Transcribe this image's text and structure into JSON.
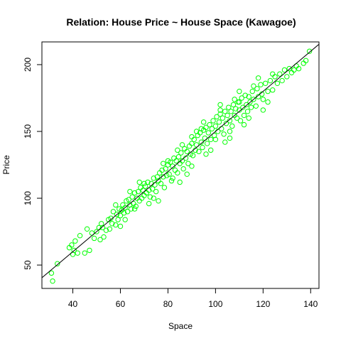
{
  "chart_data": {
    "type": "scatter",
    "title": "Relation: House Price ~ House Space (Kawagoe)",
    "xlabel": "Space",
    "ylabel": "Price",
    "xlim": [
      27,
      143.5
    ],
    "ylim": [
      32.5,
      217
    ],
    "xticks": [
      40,
      60,
      80,
      100,
      120,
      140
    ],
    "yticks": [
      50,
      100,
      150,
      200
    ],
    "grid": false,
    "point_color": "#00FF00",
    "line_color": "#000000",
    "fit_line": {
      "type": "regression",
      "slope": 1.5,
      "intercept": 0,
      "x_range": [
        27,
        143.5
      ]
    },
    "series": [
      {
        "points": [
          [
            31,
            44
          ],
          [
            31.5,
            38
          ],
          [
            33.5,
            51
          ],
          [
            38.5,
            63
          ],
          [
            39.5,
            65
          ],
          [
            40.5,
            61
          ],
          [
            40,
            58
          ],
          [
            41,
            68
          ],
          [
            42,
            59
          ],
          [
            43,
            72
          ],
          [
            45,
            59
          ],
          [
            46,
            77
          ],
          [
            47,
            61
          ],
          [
            48,
            74
          ],
          [
            49,
            70
          ],
          [
            50,
            75
          ],
          [
            51,
            78
          ],
          [
            51.5,
            69
          ],
          [
            52,
            81
          ],
          [
            52.5,
            78
          ],
          [
            53,
            71
          ],
          [
            54,
            76
          ],
          [
            55,
            84
          ],
          [
            55.5,
            77
          ],
          [
            56,
            85
          ],
          [
            56.5,
            81
          ],
          [
            57,
            90
          ],
          [
            58,
            80
          ],
          [
            58.5,
            88
          ],
          [
            59,
            84
          ],
          [
            59.5,
            92
          ],
          [
            60,
            87
          ],
          [
            60.5,
            91
          ],
          [
            61,
            95
          ],
          [
            61.5,
            89
          ],
          [
            62,
            93
          ],
          [
            62.5,
            98
          ],
          [
            63,
            90
          ],
          [
            63.5,
            99
          ],
          [
            64,
            95
          ],
          [
            64.5,
            92
          ],
          [
            65,
            101
          ],
          [
            65.5,
            96
          ],
          [
            66,
            104
          ],
          [
            66.5,
            94
          ],
          [
            67,
            100
          ],
          [
            67.5,
            105
          ],
          [
            68,
            98
          ],
          [
            68.5,
            108
          ],
          [
            69,
            100
          ],
          [
            69.5,
            106
          ],
          [
            70,
            102
          ],
          [
            70.5,
            109
          ],
          [
            71,
            104
          ],
          [
            71.5,
            112
          ],
          [
            72,
            106
          ],
          [
            72.5,
            101
          ],
          [
            73,
            111
          ],
          [
            73.5,
            107
          ],
          [
            74,
            115
          ],
          [
            74.5,
            110
          ],
          [
            75,
            105
          ],
          [
            75.5,
            116
          ],
          [
            76,
            113
          ],
          [
            76.5,
            119
          ],
          [
            77,
            111
          ],
          [
            77.5,
            121
          ],
          [
            78,
            116
          ],
          [
            78.5,
            108
          ],
          [
            79,
            122
          ],
          [
            79.5,
            117
          ],
          [
            80,
            125
          ],
          [
            80.5,
            118
          ],
          [
            81,
            127
          ],
          [
            81.5,
            113
          ],
          [
            82,
            124
          ],
          [
            82.5,
            130
          ],
          [
            83,
            121
          ],
          [
            83.5,
            128
          ],
          [
            84,
            119
          ],
          [
            84.5,
            131
          ],
          [
            85,
            126
          ],
          [
            85.5,
            134
          ],
          [
            86,
            128
          ],
          [
            86.5,
            122
          ],
          [
            87,
            137
          ],
          [
            87.5,
            130
          ],
          [
            88,
            135
          ],
          [
            88.5,
            126
          ],
          [
            89,
            139
          ],
          [
            89.5,
            133
          ],
          [
            90,
            141
          ],
          [
            90.5,
            132
          ],
          [
            91,
            144
          ],
          [
            91.5,
            136
          ],
          [
            92,
            140
          ],
          [
            92.5,
            147
          ],
          [
            93,
            135
          ],
          [
            93.5,
            149
          ],
          [
            94,
            142
          ],
          [
            94.5,
            138
          ],
          [
            95,
            151
          ],
          [
            95.5,
            145
          ],
          [
            96,
            153
          ],
          [
            96.5,
            141
          ],
          [
            97,
            149
          ],
          [
            97.5,
            155
          ],
          [
            98,
            144
          ],
          [
            98.5,
            152
          ],
          [
            99,
            158
          ],
          [
            99.5,
            147
          ],
          [
            100,
            154
          ],
          [
            100.5,
            161
          ],
          [
            101,
            150
          ],
          [
            101.5,
            157
          ],
          [
            102,
            163
          ],
          [
            102.5,
            152
          ],
          [
            103,
            160
          ],
          [
            103.5,
            148
          ],
          [
            104,
            165
          ],
          [
            104.5,
            156
          ],
          [
            105,
            162
          ],
          [
            105.5,
            168
          ],
          [
            106,
            158
          ],
          [
            106.5,
            165
          ],
          [
            107,
            154
          ],
          [
            107.5,
            170
          ],
          [
            108,
            162
          ],
          [
            108.5,
            167
          ],
          [
            109,
            160
          ],
          [
            109.5,
            172
          ],
          [
            110,
            166
          ],
          [
            110.5,
            158
          ],
          [
            111,
            175
          ],
          [
            111.5,
            168
          ],
          [
            112,
            162
          ],
          [
            112.5,
            177
          ],
          [
            113,
            170
          ],
          [
            113.5,
            165
          ],
          [
            114,
            176
          ],
          [
            114.5,
            172
          ],
          [
            115,
            168
          ],
          [
            115.5,
            180
          ],
          [
            116,
            174
          ],
          [
            117,
            169
          ],
          [
            117.5,
            182
          ],
          [
            118,
            176
          ],
          [
            119,
            185
          ],
          [
            119.5,
            178
          ],
          [
            120,
            174
          ],
          [
            121,
            186
          ],
          [
            122,
            180
          ],
          [
            123,
            188
          ],
          [
            124,
            181
          ],
          [
            125,
            191
          ],
          [
            126,
            186
          ],
          [
            127,
            193
          ],
          [
            128,
            188
          ],
          [
            129,
            196
          ],
          [
            130,
            191
          ],
          [
            131,
            197
          ],
          [
            132,
            194
          ],
          [
            133,
            196
          ],
          [
            134,
            199
          ],
          [
            135,
            197
          ],
          [
            137,
            201
          ],
          [
            138,
            203
          ],
          [
            139.5,
            210
          ],
          [
            66,
            92
          ],
          [
            70,
            111
          ],
          [
            74,
            100
          ],
          [
            78,
            126
          ],
          [
            82,
            115
          ],
          [
            86,
            140
          ],
          [
            90,
            124
          ],
          [
            94,
            152
          ],
          [
            98,
            136
          ],
          [
            102,
            166
          ],
          [
            106,
            150
          ],
          [
            110,
            172
          ],
          [
            114,
            160
          ],
          [
            118,
            190
          ],
          [
            122,
            172
          ],
          [
            85,
            112
          ],
          [
            95,
            157
          ],
          [
            100,
            144
          ],
          [
            76,
            98
          ],
          [
            80,
            128
          ],
          [
            88,
            118
          ],
          [
            92,
            150
          ],
          [
            104,
            142
          ],
          [
            108,
            174
          ],
          [
            112,
            155
          ],
          [
            116,
            184
          ],
          [
            120,
            166
          ],
          [
            124,
            193
          ],
          [
            58,
            95
          ],
          [
            62,
            84
          ],
          [
            68,
            112
          ],
          [
            72,
            96
          ],
          [
            84,
            136
          ],
          [
            96,
            133
          ],
          [
            60,
            79
          ],
          [
            64,
            105
          ],
          [
            90,
            146
          ],
          [
            102,
            170
          ],
          [
            106,
            145
          ],
          [
            110,
            180
          ]
        ]
      }
    ]
  }
}
